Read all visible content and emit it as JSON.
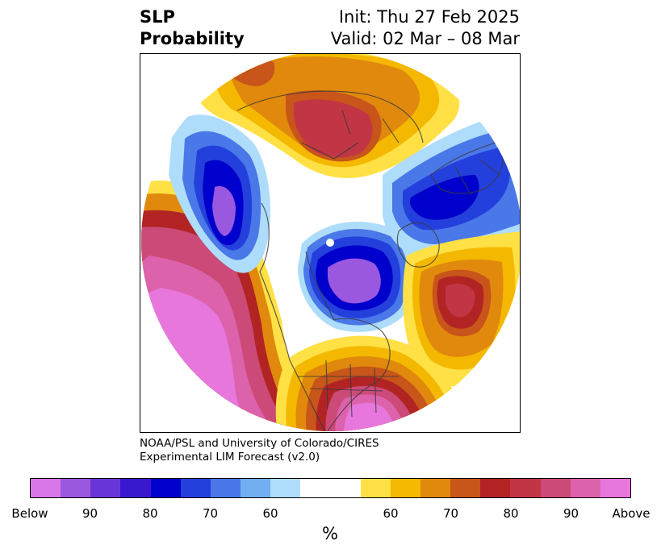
{
  "title": {
    "left_line1": "SLP",
    "left_line2": "Probability",
    "init": "Init: Thu 27 Feb 2025",
    "valid": "Valid: 02 Mar – 08 Mar"
  },
  "credit": {
    "line1": "NOAA/PSL and University of Colorado/CIRES",
    "line2": "Experimental LIM Forecast (v2.0)"
  },
  "colorbar": {
    "unit": "%",
    "segments": [
      "#d977e8",
      "#9a57e0",
      "#6a35d8",
      "#3a18d0",
      "#0000cc",
      "#2440dc",
      "#4a78e8",
      "#72aef2",
      "#aedcfb",
      "#ffffff",
      "#ffe045",
      "#f5b800",
      "#e0890c",
      "#c85519",
      "#b22424",
      "#c23545",
      "#cc4a78",
      "#dc62ac",
      "#e777dc"
    ],
    "tick_labels": [
      "Below",
      "90",
      "80",
      "70",
      "60",
      "60",
      "70",
      "80",
      "90",
      "Above"
    ]
  },
  "map": {
    "projection": "north-polar-stereographic",
    "features": [
      "coastlines",
      "country-borders",
      "state-borders"
    ],
    "colors": {
      "below_far": "#d977e8",
      "below": "#0000cc",
      "below_near": "#aedcfb",
      "neutral": "#ffffff",
      "above_near": "#ffe045",
      "above": "#e0890c",
      "above_far": "#c23545",
      "above_max": "#e777dc",
      "lines": "#3a3a3a"
    }
  }
}
